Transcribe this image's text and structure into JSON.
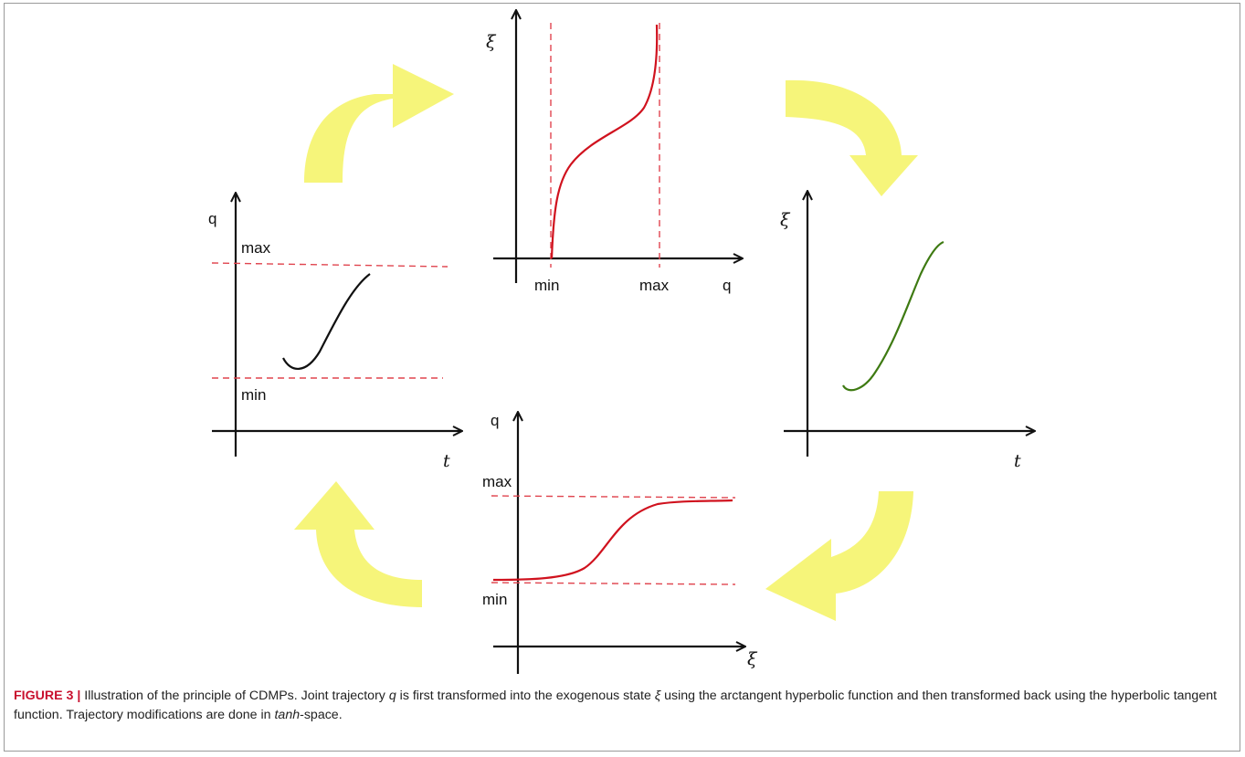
{
  "colors": {
    "arrow": "#f6f57a",
    "limit_line": "#e0454f",
    "curve_red": "#d0121e",
    "curve_black": "#111111",
    "curve_green": "#3e7a12",
    "caption_label": "#c8102e"
  },
  "panels": {
    "joint_space": {
      "y_axis": "q",
      "x_axis": "t",
      "max_label": "max",
      "min_label": "min"
    },
    "atanh_map": {
      "y_axis": "ξ",
      "x_axis": "q",
      "min_label": "min",
      "max_label": "max"
    },
    "tanh_space": {
      "y_axis": "ξ",
      "x_axis": "t"
    },
    "tanh_map": {
      "y_axis": "q",
      "x_axis": "ξ",
      "max_label": "max",
      "min_label": "min"
    }
  },
  "caption": {
    "label": "FIGURE 3 |",
    "part1": " Illustration of the principle of CDMPs. Joint trajectory ",
    "var_q": "q",
    "part2": " is first transformed into the exogenous state ",
    "var_xi": "ξ",
    "part3": " using the arctangent hyperbolic function and then transformed back using the hyperbolic tangent function. Trajectory modifications are done in ",
    "space": "tanh",
    "part4": "-space."
  }
}
